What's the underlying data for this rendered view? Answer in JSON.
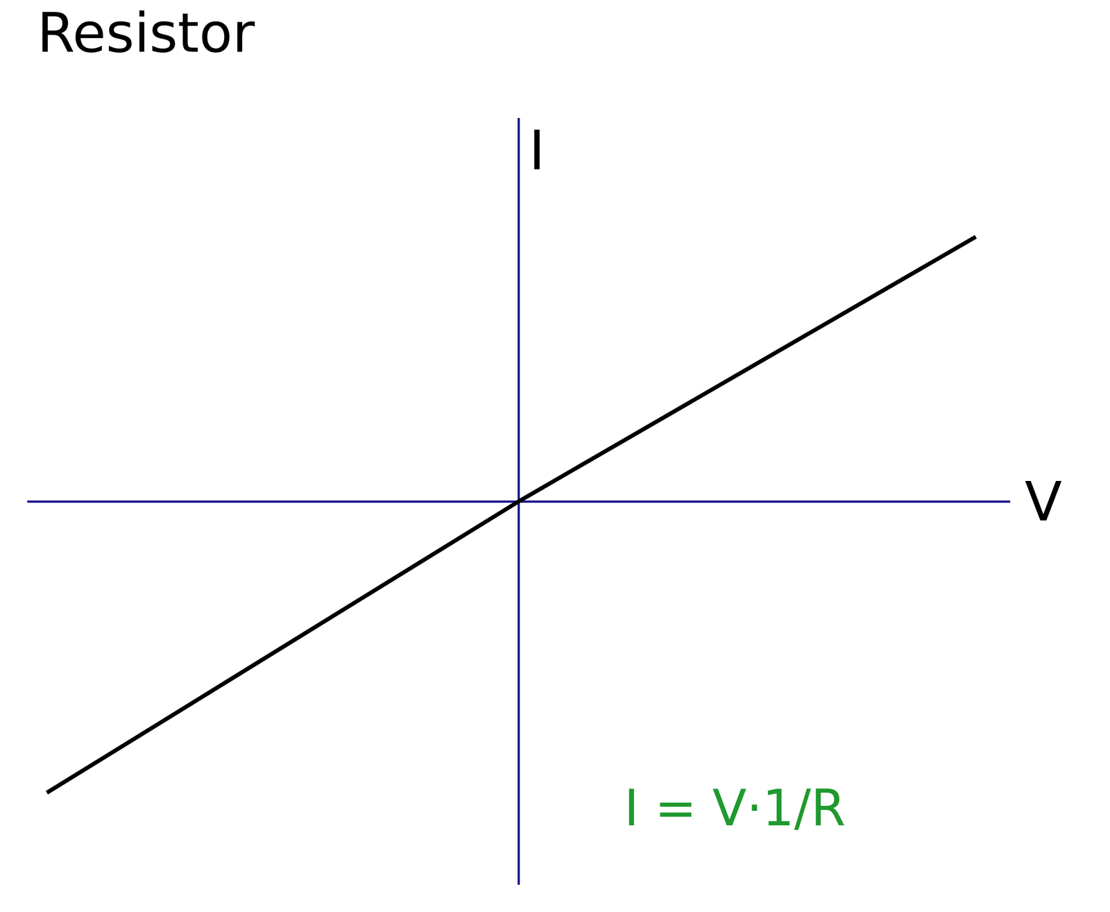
{
  "chart_data": {
    "type": "line",
    "title": "Resistor",
    "xlabel": "V",
    "ylabel": "I",
    "x": [
      -0.96,
      0,
      0.93
    ],
    "values": [
      -0.76,
      0,
      0.69
    ],
    "color": "#000000",
    "xlim": [
      -1,
      1
    ],
    "ylim": [
      -1,
      1
    ],
    "grid": false,
    "tick_labels": false,
    "annotations": [
      "I = V·1/R"
    ]
  }
}
